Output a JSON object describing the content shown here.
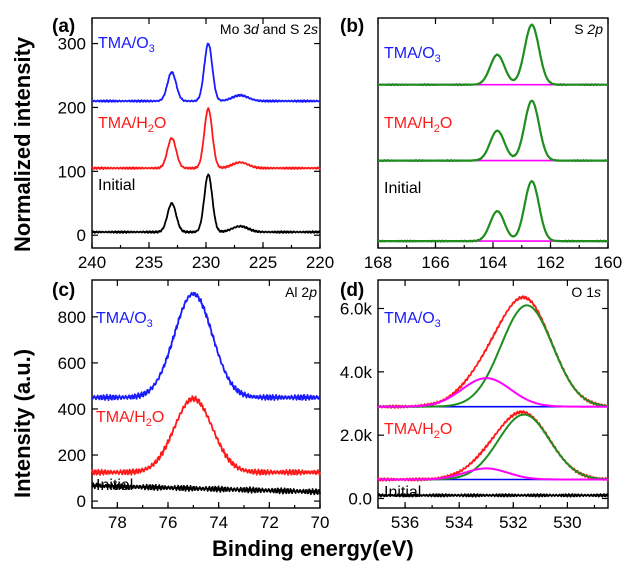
{
  "figure": {
    "ylabel_top": "Normalized intensity",
    "ylabel_bottom": "Intensity (a.u.)",
    "xlabel": "Binding energy(eV)"
  },
  "colors": {
    "blue": "#1a1aff",
    "red": "#ff1a1a",
    "black": "#000000",
    "green": "#1e8f1e",
    "magenta": "#ff00ff",
    "baseline_blue": "#0000ff"
  },
  "chart_data": [
    {
      "panel": "(a)",
      "type": "line",
      "corner_label": {
        "pre": "Mo 3",
        "it1": "d",
        "mid": " and S 2",
        "it2": "s"
      },
      "xlim": [
        240,
        220
      ],
      "ylim": [
        -20,
        340
      ],
      "xticks": [
        240,
        235,
        230,
        225,
        220
      ],
      "yticks": [
        0,
        100,
        200,
        300
      ],
      "grid": false,
      "series": [
        {
          "name": "TMA/O3",
          "label_main": "TMA/O",
          "label_sub": "3",
          "color": "blue",
          "offset": 210,
          "peaks": [
            [
              229.8,
              90,
              0.35
            ],
            [
              233.0,
              45,
              0.38
            ],
            [
              227.0,
              9,
              0.7
            ]
          ]
        },
        {
          "name": "TMA/H2O",
          "label_main": "TMA/H",
          "label_sub": "2",
          "label_tail": "O",
          "color": "red",
          "offset": 105,
          "peaks": [
            [
              229.8,
              93,
              0.35
            ],
            [
              233.0,
              47,
              0.38
            ],
            [
              227.0,
              9,
              0.7
            ]
          ]
        },
        {
          "name": "Initial",
          "label_main": "Initial",
          "color": "black",
          "offset": 5,
          "peaks": [
            [
              229.8,
              90,
              0.35
            ],
            [
              233.0,
              45,
              0.38
            ],
            [
              227.0,
              9,
              0.7
            ]
          ]
        }
      ]
    },
    {
      "panel": "(b)",
      "type": "line",
      "corner_label": {
        "pre": "S ",
        "it1": "2p"
      },
      "xlim": [
        168,
        160
      ],
      "ylim": [
        0,
        100
      ],
      "xticks": [
        168,
        166,
        164,
        162,
        160
      ],
      "yticks": [],
      "grid": false,
      "series": [
        {
          "name": "TMA/O3",
          "label_main": "TMA/O",
          "label_sub": "3",
          "color": "blue",
          "offset": 71,
          "peaks": [
            [
              162.65,
              26,
              0.25
            ],
            [
              163.85,
              13,
              0.25
            ]
          ]
        },
        {
          "name": "TMA/H2O",
          "label_main": "TMA/H",
          "label_sub": "2",
          "label_tail": "O",
          "color": "red",
          "offset": 38,
          "peaks": [
            [
              162.65,
              26,
              0.25
            ],
            [
              163.85,
              13,
              0.25
            ]
          ]
        },
        {
          "name": "Initial",
          "label_main": "Initial",
          "color": "black",
          "offset": 3,
          "peaks": [
            [
              162.65,
              26,
              0.25
            ],
            [
              163.85,
              13,
              0.25
            ]
          ]
        }
      ]
    },
    {
      "panel": "(c)",
      "type": "line",
      "corner_label": {
        "pre": "Al 2",
        "it1": "p"
      },
      "xlim": [
        79,
        70
      ],
      "ylim": [
        -30,
        960
      ],
      "xticks": [
        78,
        76,
        74,
        72,
        70
      ],
      "yticks": [
        0,
        200,
        400,
        600,
        800
      ],
      "grid": false,
      "series": [
        {
          "name": "TMA/O3",
          "label_main": "TMA/O",
          "label_sub": "3",
          "color": "blue",
          "offset": 450,
          "peaks": [
            [
              75.0,
              450,
              0.75
            ]
          ]
        },
        {
          "name": "TMA/H2O",
          "label_main": "TMA/H",
          "label_sub": "2",
          "label_tail": "O",
          "color": "red",
          "offset": 125,
          "peaks": [
            [
              75.0,
              320,
              0.75
            ]
          ]
        },
        {
          "name": "Initial",
          "label_main": "Initial",
          "color": "black",
          "offset": 40,
          "slope": 3,
          "peaks": []
        }
      ]
    },
    {
      "panel": "(d)",
      "type": "line",
      "corner_label": {
        "pre": "O 1",
        "it1": "s"
      },
      "xlim": [
        537,
        528.5
      ],
      "ylim": [
        -300,
        6900
      ],
      "xticks": [
        536,
        534,
        532,
        530
      ],
      "ytick_values": [
        0,
        2000,
        4000,
        6000
      ],
      "ytick_labels": [
        "0.0",
        "2.0k",
        "4.0k",
        "6.0k"
      ],
      "grid": false,
      "series": [
        {
          "name": "TMA/O3",
          "label_main": "TMA/O",
          "label_sub": "3",
          "color": "red",
          "label_color": "blue",
          "offset": 2900,
          "peaks": [
            [
              531.5,
              3200,
              0.95
            ],
            [
              533.0,
              900,
              0.9
            ]
          ]
        },
        {
          "name": "TMA/H2O",
          "label_main": "TMA/H",
          "label_sub": "2",
          "label_tail": "O",
          "color": "red",
          "offset": 600,
          "peaks": [
            [
              531.6,
              2050,
              0.95
            ],
            [
              533.0,
              350,
              0.8
            ]
          ]
        },
        {
          "name": "Initial",
          "label_main": "Initial",
          "color": "black",
          "offset": 100,
          "peaks": []
        }
      ],
      "fits": [
        {
          "offset": 2900,
          "baseline": true,
          "components": [
            [
              531.5,
              3200,
              0.95
            ],
            [
              533.0,
              900,
              0.9
            ]
          ]
        },
        {
          "offset": 600,
          "baseline": true,
          "components": [
            [
              531.6,
              2050,
              0.95
            ],
            [
              533.0,
              350,
              0.8
            ]
          ]
        }
      ]
    }
  ]
}
